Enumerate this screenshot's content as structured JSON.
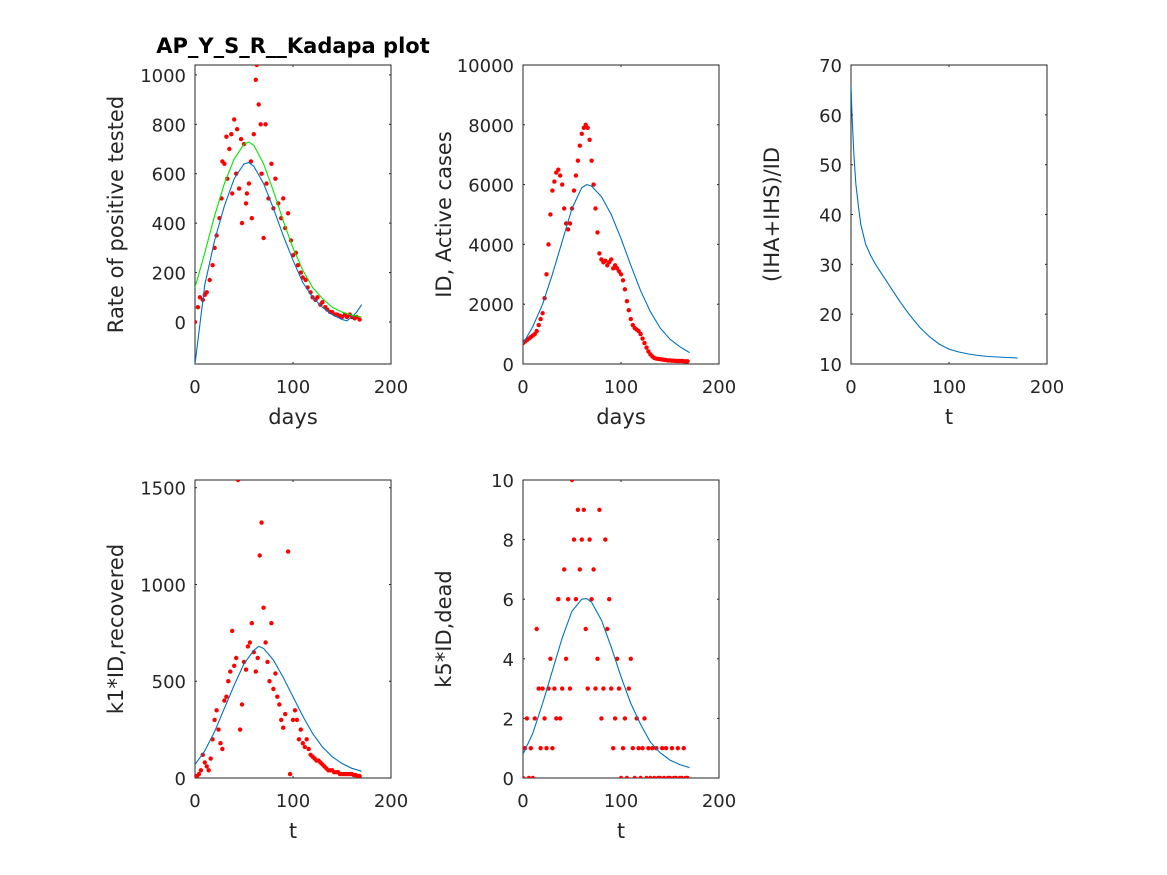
{
  "colors": {
    "data": "#ff0000",
    "fit": "#0072bd",
    "fit2": "#00e600",
    "axes": "#262626"
  },
  "chart_data": [
    {
      "type": "scatter",
      "title": "AP_Y_S_R__Kadapa plot",
      "xlabel": "days",
      "ylabel": "Rate of positive tested",
      "xlim": [
        0,
        200
      ],
      "ylim": [
        -170,
        1040
      ],
      "xticks": [
        0,
        100,
        200
      ],
      "yticks": [
        0,
        200,
        400,
        600,
        800,
        1000
      ],
      "grid": false,
      "series": [
        {
          "kind": "points",
          "color": "#ff0000",
          "x": [
            0,
            3,
            5,
            8,
            10,
            12,
            15,
            18,
            20,
            22,
            25,
            27,
            28,
            30,
            32,
            33,
            35,
            37,
            38,
            40,
            42,
            43,
            45,
            47,
            48,
            50,
            52,
            53,
            55,
            57,
            58,
            60,
            62,
            63,
            65,
            67,
            68,
            70,
            72,
            73,
            75,
            78,
            80,
            82,
            85,
            88,
            90,
            92,
            95,
            98,
            100,
            103,
            105,
            108,
            110,
            113,
            115,
            118,
            120,
            123,
            125,
            128,
            130,
            133,
            135,
            138,
            140,
            143,
            145,
            148,
            150,
            153,
            155,
            158,
            160,
            163,
            165,
            168
          ],
          "y": [
            0,
            60,
            100,
            90,
            110,
            120,
            170,
            230,
            300,
            350,
            420,
            500,
            650,
            640,
            750,
            580,
            700,
            760,
            520,
            820,
            600,
            780,
            540,
            740,
            400,
            720,
            480,
            520,
            560,
            650,
            420,
            760,
            980,
            1040,
            880,
            800,
            600,
            340,
            800,
            560,
            500,
            640,
            460,
            580,
            480,
            420,
            500,
            380,
            440,
            330,
            270,
            280,
            230,
            200,
            180,
            170,
            140,
            120,
            100,
            90,
            100,
            70,
            80,
            60,
            50,
            40,
            40,
            30,
            30,
            25,
            20,
            30,
            20,
            30,
            20,
            15,
            20,
            10
          ]
        },
        {
          "kind": "line",
          "color": "#0072bd",
          "x": [
            0,
            10,
            20,
            30,
            40,
            50,
            55,
            60,
            70,
            80,
            90,
            100,
            110,
            120,
            130,
            140,
            150,
            155,
            160,
            165,
            170
          ],
          "y": [
            -170,
            150,
            330,
            470,
            580,
            640,
            645,
            630,
            560,
            460,
            350,
            250,
            160,
            100,
            60,
            30,
            10,
            5,
            20,
            40,
            70
          ]
        },
        {
          "kind": "line",
          "color": "#00e600",
          "x": [
            0,
            10,
            20,
            30,
            40,
            50,
            55,
            60,
            70,
            80,
            90,
            100,
            110,
            120,
            130,
            140,
            150,
            160,
            170
          ],
          "y": [
            140,
            280,
            430,
            560,
            660,
            720,
            728,
            715,
            640,
            530,
            410,
            300,
            210,
            140,
            95,
            60,
            40,
            28,
            20
          ]
        }
      ]
    },
    {
      "type": "scatter",
      "title": "",
      "xlabel": "days",
      "ylabel": "ID, Active cases",
      "xlim": [
        0,
        200
      ],
      "ylim": [
        0,
        10000
      ],
      "xticks": [
        0,
        100,
        200
      ],
      "yticks": [
        0,
        2000,
        4000,
        6000,
        8000,
        10000
      ],
      "grid": false,
      "series": [
        {
          "kind": "points",
          "color": "#ff0000",
          "x": [
            0,
            2,
            4,
            6,
            8,
            10,
            12,
            14,
            16,
            18,
            20,
            22,
            24,
            26,
            28,
            30,
            32,
            34,
            36,
            38,
            40,
            42,
            44,
            46,
            48,
            50,
            52,
            54,
            56,
            58,
            60,
            62,
            64,
            66,
            68,
            70,
            72,
            74,
            76,
            78,
            80,
            82,
            84,
            86,
            88,
            90,
            92,
            94,
            96,
            98,
            100,
            102,
            104,
            106,
            108,
            110,
            112,
            114,
            116,
            118,
            120,
            122,
            124,
            126,
            128,
            130,
            132,
            134,
            136,
            138,
            140,
            142,
            144,
            146,
            148,
            150,
            152,
            154,
            156,
            158,
            160,
            162,
            164,
            166,
            168
          ],
          "y": [
            700,
            750,
            800,
            850,
            900,
            950,
            1000,
            1100,
            1300,
            1500,
            1700,
            2200,
            3000,
            4000,
            5000,
            5800,
            6100,
            6400,
            6500,
            6300,
            6000,
            5200,
            4700,
            4500,
            4700,
            5200,
            5800,
            6300,
            6800,
            7300,
            7700,
            7900,
            8000,
            7900,
            7500,
            6800,
            6000,
            5200,
            4400,
            3700,
            3500,
            3400,
            3450,
            3300,
            3400,
            3500,
            3200,
            3300,
            3200,
            3100,
            3000,
            2800,
            2500,
            2100,
            1800,
            1500,
            1300,
            1200,
            1150,
            1100,
            1000,
            850,
            700,
            550,
            420,
            320,
            250,
            200,
            180,
            170,
            160,
            150,
            140,
            130,
            120,
            120,
            110,
            110,
            105,
            100,
            100,
            100,
            95,
            90,
            90
          ]
        },
        {
          "kind": "line",
          "color": "#0072bd",
          "x": [
            0,
            10,
            20,
            30,
            40,
            50,
            60,
            65,
            70,
            80,
            90,
            100,
            110,
            120,
            130,
            140,
            150,
            160,
            170
          ],
          "y": [
            680,
            1250,
            2000,
            3000,
            4100,
            5200,
            5900,
            6000,
            5950,
            5600,
            5000,
            4200,
            3300,
            2450,
            1750,
            1200,
            830,
            580,
            380
          ]
        }
      ]
    },
    {
      "type": "line",
      "title": "",
      "xlabel": "t",
      "ylabel": "(IHA+IHS)/ID",
      "xlim": [
        0,
        200
      ],
      "ylim": [
        10,
        70
      ],
      "xticks": [
        0,
        100,
        200
      ],
      "yticks": [
        10,
        20,
        30,
        40,
        50,
        60,
        70
      ],
      "grid": false,
      "series": [
        {
          "kind": "line",
          "color": "#0072bd",
          "x": [
            0,
            1,
            3,
            5,
            8,
            10,
            15,
            20,
            25,
            30,
            40,
            50,
            60,
            70,
            80,
            90,
            100,
            110,
            120,
            130,
            140,
            150,
            160,
            170
          ],
          "y": [
            66,
            60,
            52,
            46,
            41,
            38,
            34,
            31.8,
            30,
            28.5,
            25.5,
            22.5,
            19.8,
            17.4,
            15.5,
            14,
            13,
            12.4,
            12,
            11.7,
            11.5,
            11.4,
            11.3,
            11.2
          ]
        }
      ]
    },
    {
      "type": "scatter",
      "title": "",
      "xlabel": "t",
      "ylabel": "k1*ID,recovered",
      "xlim": [
        0,
        200
      ],
      "ylim": [
        0,
        1540
      ],
      "xticks": [
        0,
        100,
        200
      ],
      "yticks": [
        0,
        500,
        1000,
        1500
      ],
      "grid": false,
      "series": [
        {
          "kind": "points",
          "color": "#ff0000",
          "x": [
            0,
            2,
            4,
            6,
            8,
            10,
            12,
            14,
            16,
            18,
            20,
            22,
            24,
            26,
            28,
            30,
            32,
            34,
            36,
            38,
            40,
            42,
            44,
            46,
            48,
            50,
            52,
            54,
            56,
            58,
            60,
            62,
            64,
            66,
            68,
            70,
            72,
            74,
            76,
            78,
            80,
            82,
            84,
            86,
            88,
            90,
            92,
            95,
            97,
            100,
            102,
            104,
            106,
            108,
            110,
            112,
            114,
            116,
            118,
            120,
            122,
            124,
            126,
            128,
            130,
            132,
            134,
            136,
            138,
            140,
            142,
            144,
            146,
            148,
            150,
            152,
            154,
            156,
            158,
            160,
            162,
            164,
            166,
            168
          ],
          "y": [
            0,
            10,
            20,
            40,
            120,
            80,
            60,
            40,
            100,
            200,
            300,
            350,
            250,
            180,
            150,
            400,
            420,
            500,
            550,
            760,
            580,
            620,
            1540,
            250,
            380,
            600,
            560,
            680,
            700,
            800,
            650,
            550,
            620,
            1150,
            1320,
            880,
            700,
            600,
            500,
            800,
            460,
            540,
            420,
            380,
            300,
            260,
            330,
            1170,
            20,
            300,
            350,
            300,
            200,
            250,
            180,
            160,
            200,
            150,
            120,
            110,
            100,
            90,
            90,
            80,
            70,
            60,
            50,
            40,
            40,
            40,
            30,
            30,
            30,
            20,
            20,
            20,
            20,
            20,
            20,
            20,
            15,
            15,
            10,
            10
          ]
        },
        {
          "kind": "line",
          "color": "#0072bd",
          "x": [
            0,
            10,
            20,
            30,
            40,
            50,
            60,
            65,
            70,
            80,
            90,
            100,
            110,
            120,
            130,
            140,
            150,
            160,
            170
          ],
          "y": [
            70,
            140,
            240,
            360,
            480,
            590,
            660,
            680,
            670,
            610,
            520,
            420,
            320,
            230,
            160,
            110,
            75,
            50,
            35
          ]
        }
      ]
    },
    {
      "type": "scatter",
      "title": "",
      "xlabel": "t",
      "ylabel": "k5*ID,dead",
      "xlim": [
        0,
        200
      ],
      "ylim": [
        0,
        10
      ],
      "xticks": [
        0,
        100,
        200
      ],
      "yticks": [
        0,
        2,
        4,
        6,
        8,
        10
      ],
      "grid": false,
      "series": [
        {
          "kind": "points",
          "color": "#ff0000",
          "x": [
            0,
            2,
            4,
            6,
            8,
            10,
            12,
            14,
            16,
            18,
            20,
            22,
            24,
            26,
            28,
            30,
            32,
            34,
            36,
            38,
            40,
            42,
            44,
            46,
            48,
            50,
            52,
            54,
            56,
            58,
            60,
            62,
            64,
            66,
            68,
            70,
            72,
            74,
            76,
            78,
            80,
            82,
            84,
            86,
            88,
            90,
            92,
            94,
            96,
            98,
            100,
            102,
            104,
            106,
            108,
            110,
            112,
            114,
            116,
            118,
            120,
            122,
            124,
            126,
            128,
            130,
            132,
            134,
            136,
            138,
            140,
            142,
            144,
            146,
            148,
            150,
            152,
            154,
            156,
            158,
            160,
            162,
            164,
            166,
            168
          ],
          "y": [
            0,
            1,
            2,
            0,
            1,
            0,
            2,
            5,
            3,
            1,
            3,
            2,
            1,
            3,
            4,
            1,
            3,
            2,
            6,
            2,
            3,
            7,
            4,
            6,
            3,
            10,
            8,
            6,
            9,
            7,
            8,
            9,
            5,
            3,
            8,
            6,
            7,
            3,
            4,
            9,
            2,
            3,
            8,
            5,
            6,
            3,
            1,
            2,
            4,
            3,
            0,
            1,
            2,
            0,
            3,
            4,
            1,
            0,
            2,
            1,
            0,
            1,
            2,
            0,
            1,
            0,
            1,
            0,
            1,
            0,
            0,
            1,
            0,
            1,
            0,
            0,
            1,
            0,
            0,
            1,
            0,
            0,
            1,
            0,
            0
          ]
        },
        {
          "kind": "line",
          "color": "#0072bd",
          "x": [
            0,
            10,
            20,
            30,
            40,
            50,
            60,
            65,
            70,
            80,
            90,
            100,
            110,
            120,
            130,
            140,
            150,
            160,
            170
          ],
          "y": [
            0.8,
            1.5,
            2.5,
            3.6,
            4.7,
            5.6,
            6,
            6.02,
            5.9,
            5.3,
            4.4,
            3.4,
            2.5,
            1.8,
            1.2,
            0.85,
            0.6,
            0.45,
            0.35
          ]
        }
      ]
    }
  ]
}
